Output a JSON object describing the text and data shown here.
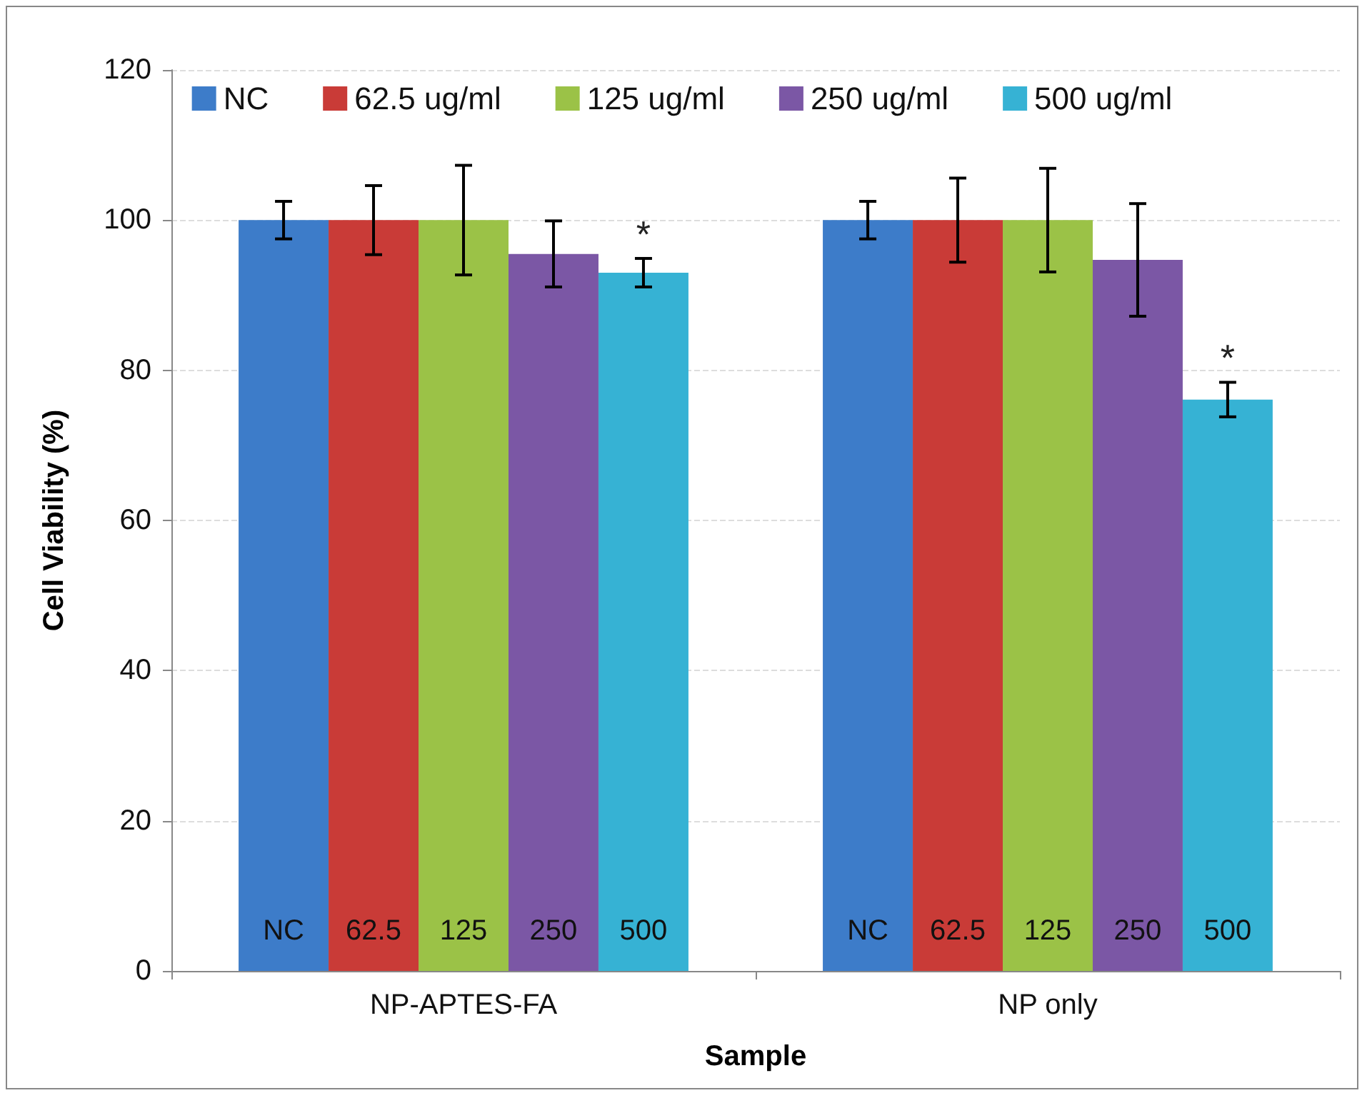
{
  "chart_data": {
    "type": "bar",
    "xlabel": "Sample",
    "ylabel": "Cell Viability (%)",
    "categories": [
      "NP-APTES-FA",
      "NP only"
    ],
    "series": [
      {
        "name": "NC",
        "color": "#3d7cc9",
        "values": [
          100,
          100
        ],
        "errors": [
          2.5,
          2.5
        ]
      },
      {
        "name": "62.5 ug/ml",
        "color": "#c93b37",
        "values": [
          100,
          100
        ],
        "errors": [
          4.6,
          5.6
        ]
      },
      {
        "name": "125 ug/ml",
        "color": "#9bc247",
        "values": [
          100,
          100
        ],
        "errors": [
          7.3,
          6.9
        ]
      },
      {
        "name": "250 ug/ml",
        "color": "#7b57a5",
        "values": [
          95.5,
          94.7
        ],
        "errors": [
          4.4,
          7.5
        ]
      },
      {
        "name": "500 ug/ml",
        "color": "#36b2d4",
        "values": [
          93,
          76.1
        ],
        "errors": [
          1.9,
          2.3
        ]
      }
    ],
    "annotations": [
      "NC",
      "62.5",
      "125",
      "250",
      "500",
      "NC",
      "62.5",
      "125",
      "250",
      "500",
      "*",
      "*"
    ],
    "ylim": [
      0,
      120
    ],
    "yticks": [
      0,
      20,
      40,
      60,
      80,
      100,
      120
    ],
    "grid": "y",
    "legend": "top"
  }
}
